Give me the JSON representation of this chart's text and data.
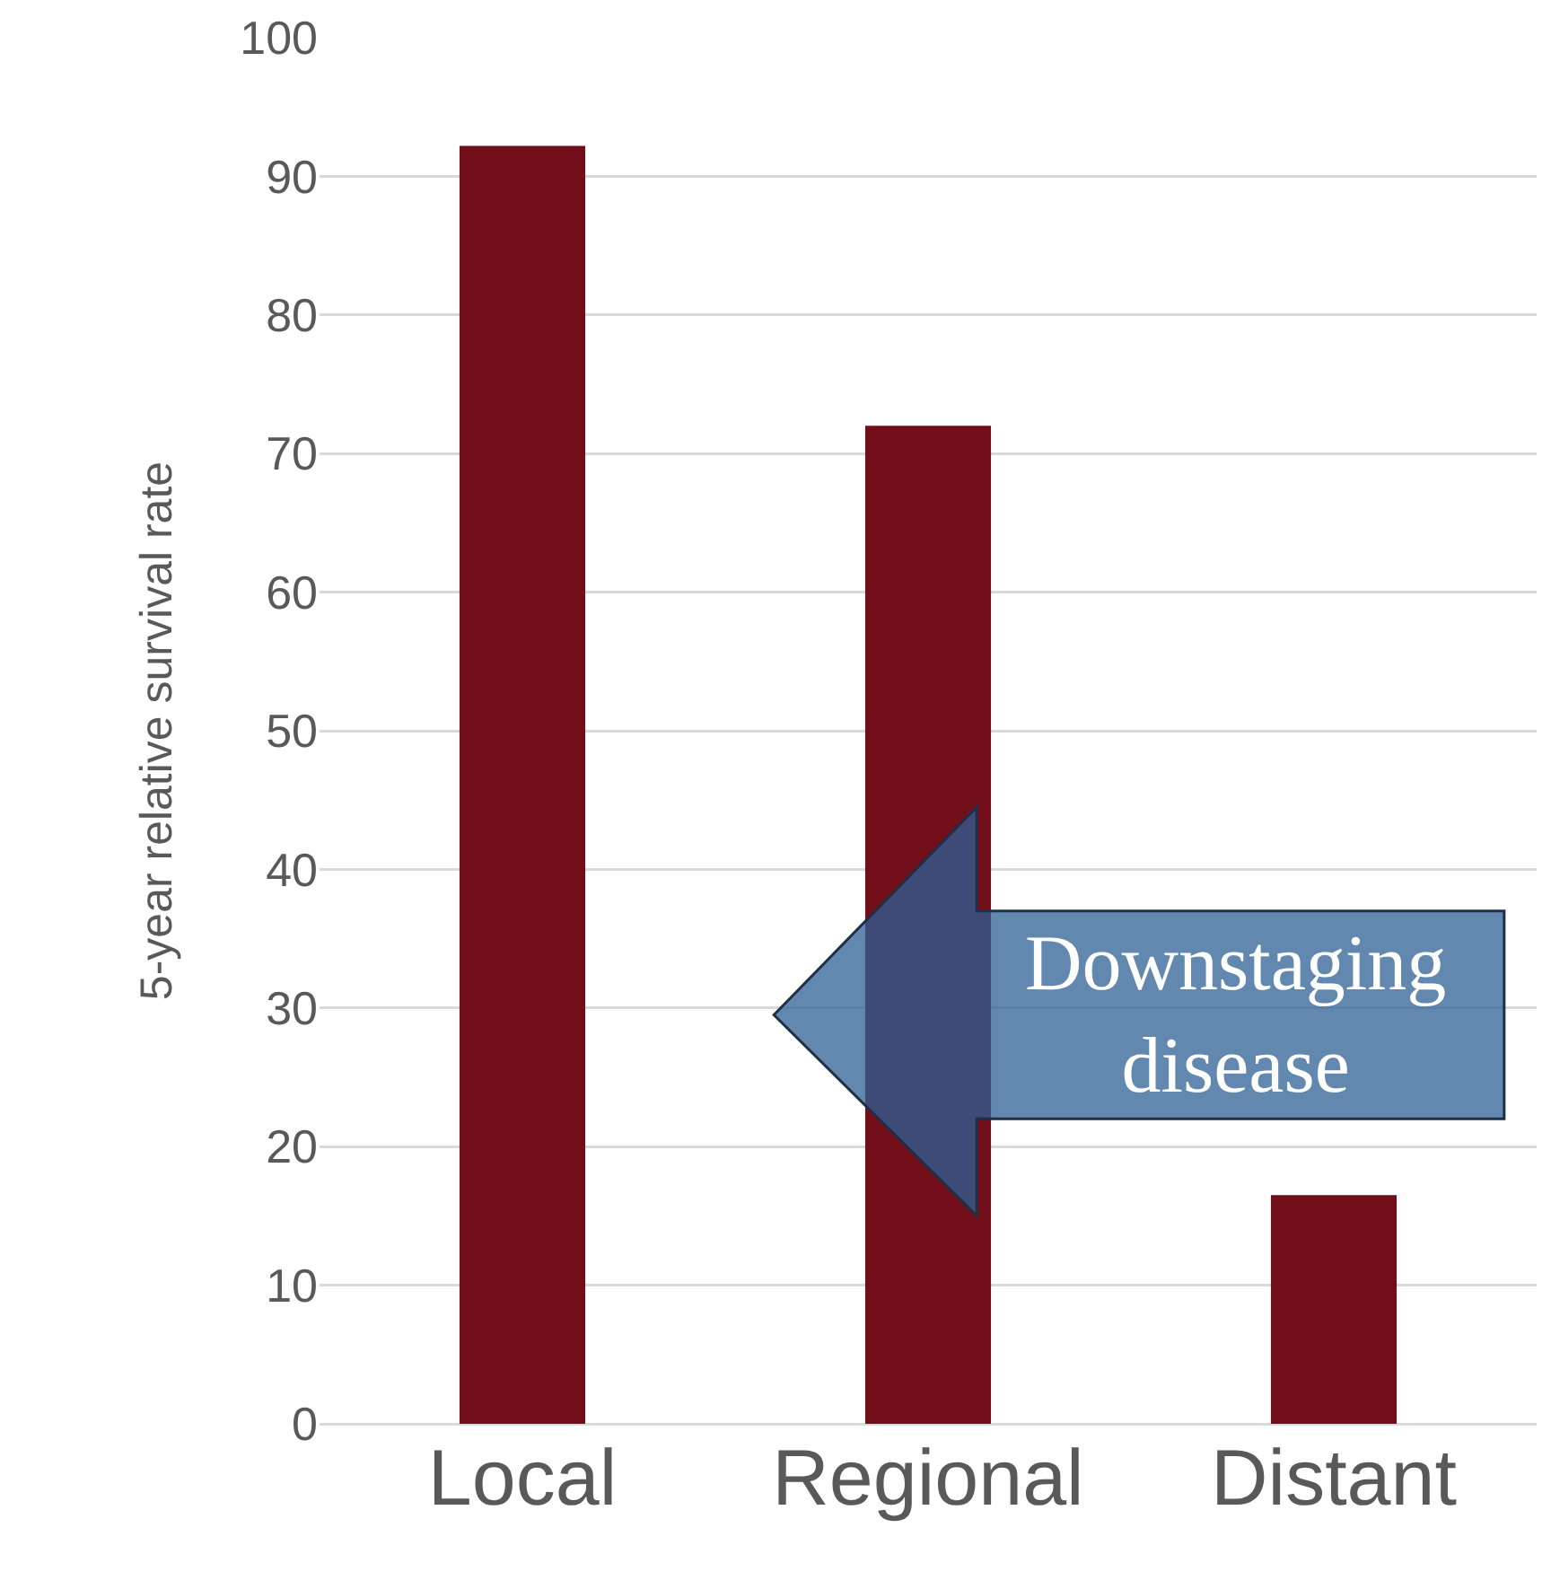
{
  "chart_data": {
    "type": "bar",
    "ylabel": "5-year relative survival rate",
    "categories": [
      "Local",
      "Regional",
      "Distant"
    ],
    "values": [
      92.2,
      72.0,
      16.5
    ],
    "color": "#720e1a",
    "ylim": [
      0,
      100
    ],
    "yticks": [
      0,
      10,
      20,
      30,
      40,
      50,
      60,
      70,
      80,
      90,
      100
    ],
    "grid": "y",
    "annotations": [
      "Downstaging disease"
    ]
  }
}
